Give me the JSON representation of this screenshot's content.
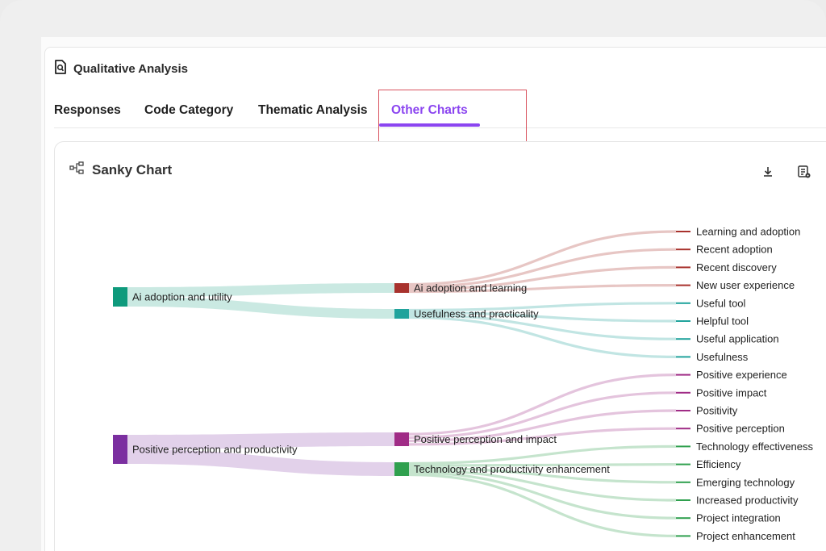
{
  "header": {
    "title": "Qualitative Analysis"
  },
  "tabs": [
    {
      "label": "Responses"
    },
    {
      "label": "Code Category"
    },
    {
      "label": "Thematic Analysis"
    },
    {
      "label": "Other Charts"
    }
  ],
  "active_tab": "Other Charts",
  "chart_card": {
    "title": "Sanky Chart",
    "download_icon": "download-icon",
    "report_icon": "report-settings-icon"
  },
  "chart_data": {
    "type": "sankey",
    "nodes_level1": [
      {
        "name": "Ai adoption and utility",
        "color": "#0e9a7c"
      },
      {
        "name": "Positive perception and productivity",
        "color": "#7b2fa0"
      }
    ],
    "nodes_level2": [
      {
        "name": "Ai adoption and learning",
        "color": "#a8322d",
        "parent": "Ai adoption and utility"
      },
      {
        "name": "Usefulness and practicality",
        "color": "#21a39c",
        "parent": "Ai adoption and utility"
      },
      {
        "name": "Positive perception and impact",
        "color": "#a02c86",
        "parent": "Positive perception and productivity"
      },
      {
        "name": "Technology and productivity enhancement",
        "color": "#2fa04e",
        "parent": "Positive perception and productivity"
      }
    ],
    "nodes_level3": [
      {
        "name": "Learning and adoption",
        "parent": "Ai adoption and learning"
      },
      {
        "name": "Recent adoption",
        "parent": "Ai adoption and learning"
      },
      {
        "name": "Recent discovery",
        "parent": "Ai adoption and learning"
      },
      {
        "name": "New user experience",
        "parent": "Ai adoption and learning"
      },
      {
        "name": "Useful tool",
        "parent": "Usefulness and practicality"
      },
      {
        "name": "Helpful tool",
        "parent": "Usefulness and practicality"
      },
      {
        "name": "Useful application",
        "parent": "Usefulness and practicality"
      },
      {
        "name": "Usefulness",
        "parent": "Usefulness and practicality"
      },
      {
        "name": "Positive experience",
        "parent": "Positive perception and impact"
      },
      {
        "name": "Positive impact",
        "parent": "Positive perception and impact"
      },
      {
        "name": "Positivity",
        "parent": "Positive perception and impact"
      },
      {
        "name": "Positive perception",
        "parent": "Positive perception and impact"
      },
      {
        "name": "Technology effectiveness",
        "parent": "Technology and productivity enhancement"
      },
      {
        "name": "Efficiency",
        "parent": "Technology and productivity enhancement"
      },
      {
        "name": "Emerging technology",
        "parent": "Technology and productivity enhancement"
      },
      {
        "name": "Increased productivity",
        "parent": "Technology and productivity enhancement"
      },
      {
        "name": "Project integration",
        "parent": "Technology and productivity enhancement"
      },
      {
        "name": "Project enhancement",
        "parent": "Technology and productivity enhancement"
      }
    ]
  }
}
